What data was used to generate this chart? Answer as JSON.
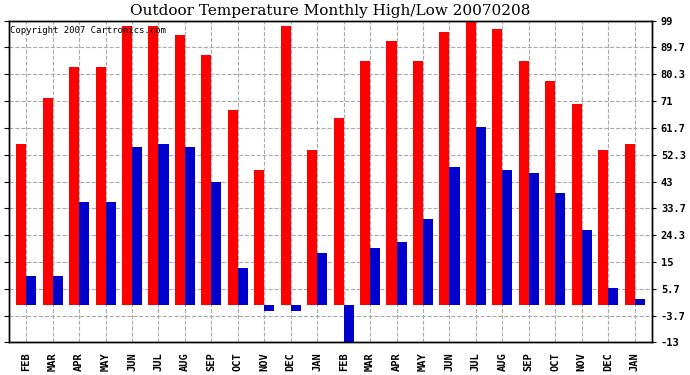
{
  "title": "Outdoor Temperature Monthly High/Low 20070208",
  "copyright": "Copyright 2007 Cartronics.com",
  "months": [
    "FEB",
    "MAR",
    "APR",
    "MAY",
    "JUN",
    "JUL",
    "AUG",
    "SEP",
    "OCT",
    "NOV",
    "DEC",
    "JAN",
    "FEB",
    "MAR",
    "APR",
    "MAY",
    "JUN",
    "JUL",
    "AUG",
    "SEP",
    "OCT",
    "NOV",
    "DEC",
    "JAN"
  ],
  "highs": [
    56,
    72,
    83,
    83,
    97,
    97,
    94,
    87,
    68,
    47,
    97,
    54,
    65,
    85,
    92,
    85,
    95,
    99,
    96,
    85,
    78,
    70,
    54,
    56
  ],
  "lows": [
    10,
    10,
    36,
    36,
    55,
    56,
    55,
    43,
    13,
    -2,
    -2,
    18,
    -13,
    20,
    22,
    30,
    48,
    62,
    47,
    46,
    39,
    26,
    6,
    2
  ],
  "yticks": [
    -13.0,
    -3.7,
    5.7,
    15.0,
    24.3,
    33.7,
    43.0,
    52.3,
    61.7,
    71.0,
    80.3,
    89.7,
    99.0
  ],
  "ymin": -13.0,
  "ymax": 99.0,
  "bar_width": 0.38,
  "high_color": "#ff0000",
  "low_color": "#0000cc",
  "background_color": "#ffffff",
  "grid_color": "#aaaaaa",
  "title_fontsize": 11,
  "tick_fontsize": 7.5,
  "copyright_fontsize": 6.5
}
